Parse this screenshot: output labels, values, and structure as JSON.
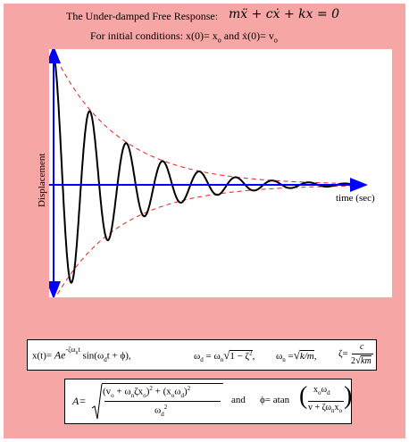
{
  "header": {
    "title": "The Under-damped Free Response:",
    "equation": "mẍ + cẋ + kx = 0",
    "conditions_prefix": "For initial conditions:",
    "cond1": "x(0)= x",
    "cond1_sub": "o",
    "and": "and",
    "cond2": "ẋ(0)= v",
    "cond2_sub": "o"
  },
  "axes": {
    "ylabel": "Displacement",
    "xlabel": "time (sec)"
  },
  "chart_data": {
    "type": "line",
    "title": "The Under-damped Free Response",
    "xlabel": "time (sec)",
    "ylabel": "Displacement",
    "series": [
      {
        "curve": "response",
        "formula": "x(t) = A e^(-ζ ω_n t) sin(ω_d t + φ)",
        "color": "#000000",
        "style": "solid",
        "points": [
          [
            0.0,
            0.95
          ],
          [
            0.6,
            -1.0
          ],
          [
            1.2,
            0.68
          ],
          [
            1.85,
            -0.48
          ],
          [
            2.45,
            0.33
          ],
          [
            3.1,
            -0.22
          ],
          [
            3.7,
            0.15
          ],
          [
            4.3,
            -0.1
          ],
          [
            4.9,
            0.07
          ],
          [
            5.5,
            -0.04
          ],
          [
            6.1,
            0.03
          ],
          [
            7.0,
            0.0
          ]
        ]
      },
      {
        "curve": "upper envelope",
        "formula": "+A e^(-ζ ω_n t)",
        "color": "#e02020",
        "style": "dashed"
      },
      {
        "curve": "lower envelope",
        "formula": "-A e^(-ζ ω_n t)",
        "color": "#e02020",
        "style": "dashed"
      }
    ],
    "axis_color": "#0000ff",
    "grid": false
  },
  "formulas": {
    "x_lhs": "x(t)=",
    "x_rhs_A": "Ae",
    "x_exp": "-ζω",
    "x_exp_sub": "n",
    "x_exp_t": "t",
    "x_sin": "sin(ω",
    "x_sin_sub": "d",
    "x_sin_rest": "t + ϕ),",
    "wd_lhs": "ω",
    "wd_sub": "d",
    "wd_eq": "= ω",
    "wd_n": "n",
    "wd_root": "1 − ζ",
    "wd_root_exp": "2",
    "wn_lhs": "ω",
    "wn_sub": "n",
    "wn_eq": "=",
    "wn_root": "k/m",
    "zeta_lhs": "ζ=",
    "zeta_num": "c",
    "zeta_den": "2",
    "zeta_den_root": "km",
    "A_lhs": "A=",
    "A_num": "(v",
    "A_num_b": "o",
    "A_num_c": " + ω",
    "A_num_d": "n",
    "A_num_e": "ζx",
    "A_num_f": "o",
    "A_num_g": ")",
    "A_num_h": "2",
    "A_num_i": " + (x",
    "A_num_j": "o",
    "A_num_k": "ω",
    "A_num_l": "d",
    "A_num_m": ")",
    "A_num_n": "2",
    "A_den": "ω",
    "A_den_sub": "d",
    "A_den_sup": "2",
    "and": "and",
    "phi_lhs": "ϕ=",
    "phi_atan": "atan",
    "phi_num": "x",
    "phi_num_sub": "o",
    "phi_num_b": "ω",
    "phi_num_c": "d",
    "phi_den": "v + ζω",
    "phi_den_sub": "n",
    "phi_den_b": "x",
    "phi_den_c": "o"
  }
}
